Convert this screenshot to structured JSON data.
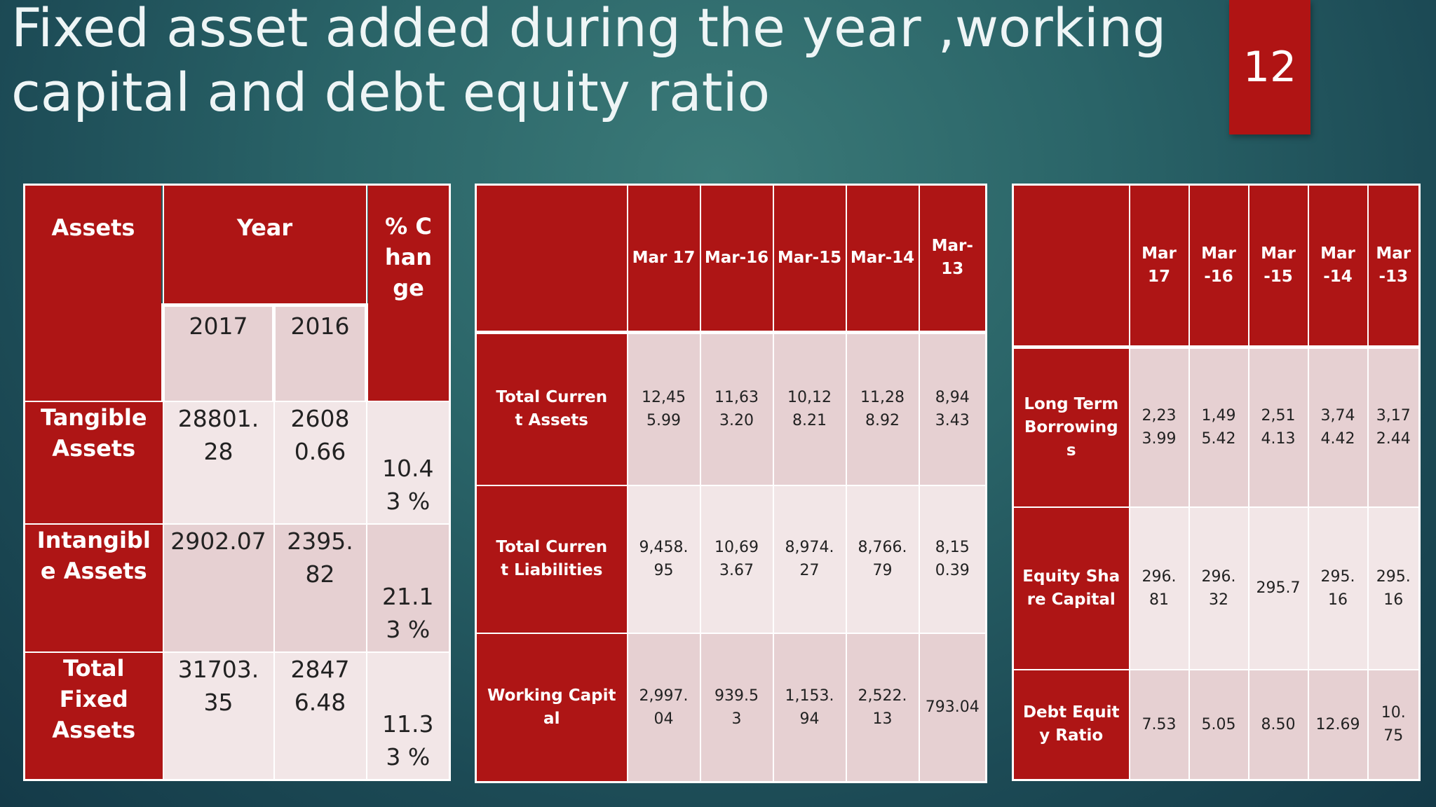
{
  "title": "Fixed asset added during the year ,working capital and debt equity ratio",
  "page_number": "12",
  "colors": {
    "header_red": "#ae1515",
    "cell_light": "#f2e6e7",
    "cell_pink": "#e6d0d2",
    "badge_red": "#b01414"
  },
  "fixed_assets_table": {
    "header_assets": "Assets",
    "header_year": "Year",
    "header_change": "% Change",
    "years": [
      "2017",
      "2016"
    ],
    "rows": [
      {
        "label": "Tangible Assets",
        "y2017": "28801.28",
        "y2016": "26080.66",
        "change": "10.43 %"
      },
      {
        "label": "Intangible Assets",
        "y2017": "2902.07",
        "y2016": "2395.82",
        "change": "21.13 %"
      },
      {
        "label": "Total Fixed Assets",
        "y2017": "31703.35",
        "y2016": "28476.48",
        "change": "11.33 %"
      }
    ]
  },
  "working_capital_table": {
    "corner": "",
    "columns": [
      "Mar 17",
      "Mar-16",
      "Mar-15",
      "Mar-14",
      "Mar-13"
    ],
    "rows": [
      {
        "label": "Total Current Assets",
        "values": [
          "12,455.99",
          "11,633.20",
          "10,128.21",
          "11,288.92",
          "8,943.43"
        ]
      },
      {
        "label": "Total Current Liabilities",
        "values": [
          "9,458.95",
          "10,693.67",
          "8,974.27",
          "8,766.79",
          "8,150.39"
        ]
      },
      {
        "label": "Working Capital",
        "values": [
          "2,997.04",
          "939.53",
          "1,153.94",
          "2,522.13",
          "793.04"
        ]
      }
    ]
  },
  "debt_equity_table": {
    "corner": "",
    "columns": [
      "Mar 17",
      "Mar-16",
      "Mar-15",
      "Mar-14",
      "Mar -13"
    ],
    "rows": [
      {
        "label": "Long Term Borrowings",
        "values": [
          "2,233.99",
          "1,495.42",
          "2,514.13",
          "3,744.42",
          "3,172.44"
        ]
      },
      {
        "label": "Equity Share Capital",
        "values": [
          "296.81",
          "296.32",
          "295.7",
          "295.16",
          "295.16"
        ]
      },
      {
        "label": "Debt Equity Ratio",
        "values": [
          "7.53",
          "5.05",
          "8.50",
          "12.69",
          "10.75"
        ]
      }
    ]
  }
}
